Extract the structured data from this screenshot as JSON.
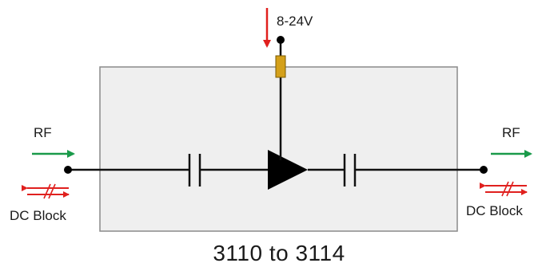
{
  "diagram": {
    "supply_label": "8-24V",
    "rf_left_label": "RF",
    "rf_right_label": "RF",
    "dc_block_left_label": "DC Block",
    "dc_block_right_label": "DC Block",
    "model_range": "3110 to 3114",
    "colors": {
      "housing_fill": "#efefef",
      "housing_stroke": "#8a8a8a",
      "signal_line": "#111111",
      "rf_arrow": "#1a9a4a",
      "supply_arrow": "#e0201e",
      "dc_block_arrow": "#e0201e",
      "resistor_fill": "#d4a01a"
    }
  }
}
